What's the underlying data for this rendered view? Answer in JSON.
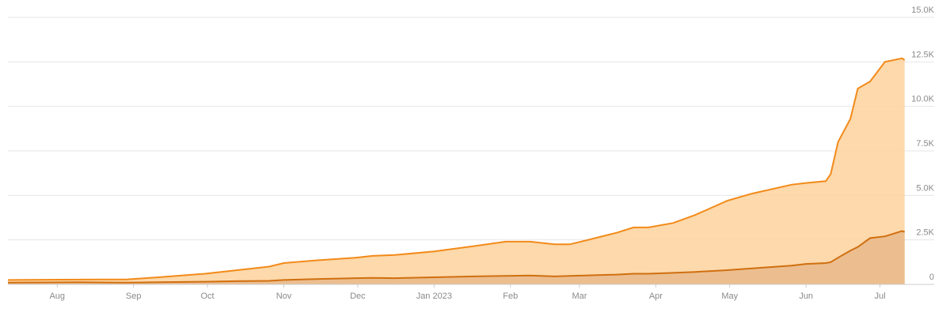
{
  "chart_data": {
    "type": "area",
    "x": [
      0,
      29,
      48,
      61,
      80,
      93,
      106,
      112,
      125,
      141,
      148,
      157,
      173,
      189,
      202,
      212,
      222,
      228,
      234,
      247,
      254,
      260,
      270,
      279,
      292,
      302,
      318,
      324,
      332,
      334,
      337,
      342,
      345,
      350,
      356,
      363,
      364
    ],
    "series": [
      {
        "color": "#f28a1a",
        "fill": "#fdd29c",
        "values": [
          250,
          270,
          280,
          400,
          600,
          800,
          1000,
          1200,
          1350,
          1500,
          1600,
          1650,
          1850,
          2150,
          2400,
          2400,
          2250,
          2250,
          2450,
          2900,
          3200,
          3200,
          3450,
          3900,
          4700,
          5100,
          5600,
          5700,
          5800,
          6200,
          8000,
          9300,
          11000,
          11400,
          12500,
          12700,
          12600
        ]
      },
      {
        "color": "#d06f10",
        "fill": "#e9b98a",
        "values": [
          100,
          120,
          100,
          120,
          150,
          180,
          200,
          250,
          300,
          350,
          370,
          350,
          400,
          450,
          480,
          500,
          450,
          480,
          500,
          550,
          600,
          600,
          650,
          700,
          800,
          900,
          1050,
          1150,
          1200,
          1250,
          1500,
          1900,
          2100,
          2600,
          2700,
          3000,
          2950
        ]
      }
    ],
    "xlim": [
      0,
      376
    ],
    "xticks": [
      {
        "value": 20,
        "label": "Aug"
      },
      {
        "value": 51,
        "label": "Sep"
      },
      {
        "value": 81,
        "label": "Oct"
      },
      {
        "value": 112,
        "label": "Nov"
      },
      {
        "value": 142,
        "label": "Dec"
      },
      {
        "value": 173,
        "label": "Jan 2023"
      },
      {
        "value": 204,
        "label": "Feb"
      },
      {
        "value": 232,
        "label": "Mar"
      },
      {
        "value": 263,
        "label": "Apr"
      },
      {
        "value": 293,
        "label": "May"
      },
      {
        "value": 324,
        "label": "Jun"
      },
      {
        "value": 354,
        "label": "Jul"
      }
    ],
    "ylim": [
      0,
      15000
    ],
    "yticks": [
      0,
      {
        "value": 2500,
        "label": "2.5K"
      },
      {
        "value": 5000,
        "label": "5.0K"
      },
      {
        "value": 7500,
        "label": "7.5K"
      },
      {
        "value": 10000,
        "label": "10.0K"
      },
      {
        "value": 12500,
        "label": "12.5K"
      },
      {
        "value": 15000,
        "label": "15.0K"
      }
    ],
    "grid": true
  }
}
